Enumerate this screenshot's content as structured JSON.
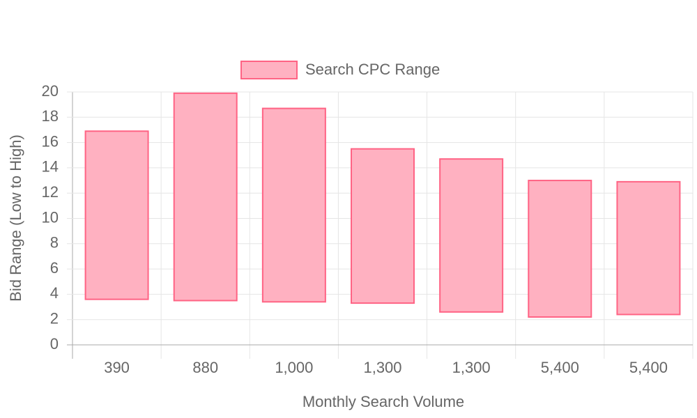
{
  "chart_data": {
    "type": "floating-bar",
    "x_label": "Monthly Search Volume",
    "y_label": "Bid Range (Low to High)",
    "categories": [
      "390",
      "880",
      "1,000",
      "1,300",
      "1,300",
      "5,400",
      "5,400"
    ],
    "series": [
      {
        "name": "Search CPC Range",
        "color": "#ffb1c1",
        "border_color": "#ff6384",
        "values": [
          [
            3.6,
            16.9
          ],
          [
            3.5,
            19.9
          ],
          [
            3.4,
            18.7
          ],
          [
            3.3,
            15.5
          ],
          [
            2.6,
            14.7
          ],
          [
            2.2,
            13.0
          ],
          [
            2.4,
            12.9
          ]
        ]
      }
    ],
    "ylim": [
      0,
      20
    ],
    "yticks": [
      0,
      2,
      4,
      6,
      8,
      10,
      12,
      14,
      16,
      18,
      20
    ],
    "grid": true,
    "legend": "top"
  }
}
